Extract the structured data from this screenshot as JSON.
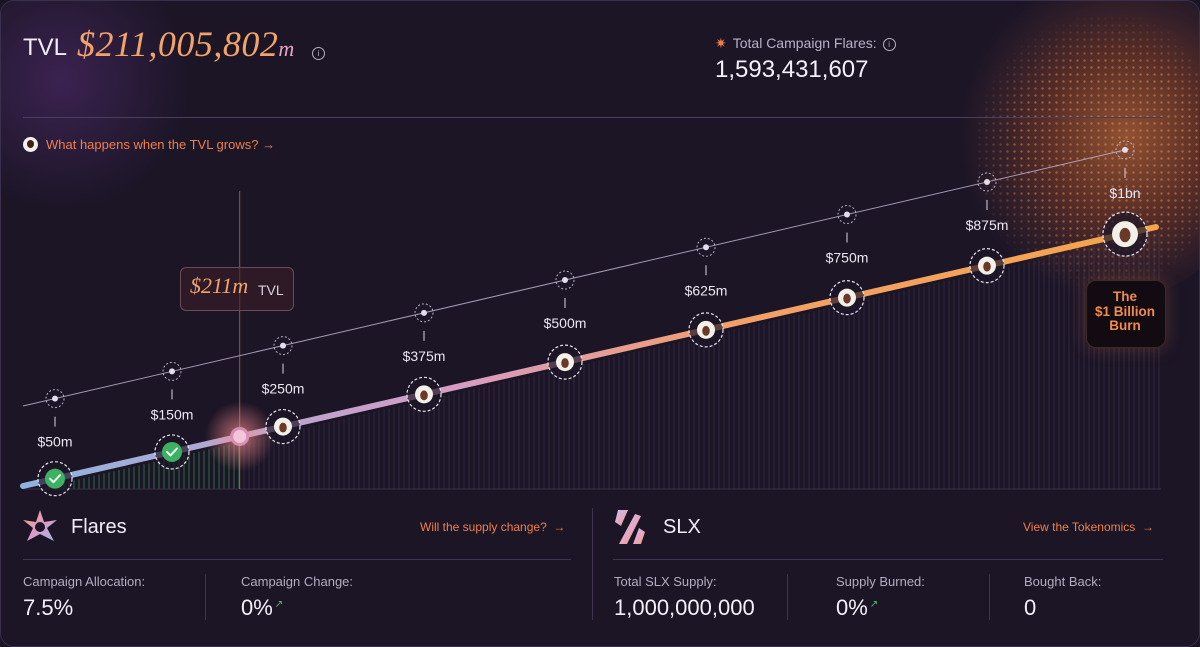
{
  "header": {
    "tvl_label": "TVL",
    "tvl_value": "$211,005,802",
    "tvl_unit": "m",
    "campaign_flares_label": "Total Campaign Flares:",
    "campaign_flares_value": "1,593,431,607",
    "tvl_question": "What happens when the TVL grows?",
    "tvl_question_arrow": "→"
  },
  "chart_data": {
    "type": "line",
    "milestones": [
      "$50m",
      "$150m",
      "$250m",
      "$375m",
      "$500m",
      "$625m",
      "$750m",
      "$875m",
      "$1bn"
    ],
    "milestone_values_m": [
      50,
      150,
      250,
      375,
      500,
      625,
      750,
      875,
      1000
    ],
    "reached": [
      true,
      true,
      false,
      false,
      false,
      false,
      false,
      false,
      false
    ],
    "current_tvl_m": 211,
    "current_label": "$211m",
    "current_suffix": "TVL",
    "final_burn_label": [
      "The",
      "$1 Billion",
      "Burn"
    ],
    "colors": {
      "start": "#8fb3df",
      "mid": "#d79bc4",
      "end": "#f4a44c",
      "reached": "#3db063"
    }
  },
  "flares": {
    "title": "Flares",
    "link": "Will the supply change?",
    "link_arrow": "→",
    "allocation_label": "Campaign Allocation:",
    "allocation_value": "7.5%",
    "change_label": "Campaign Change:",
    "change_value": "0%",
    "change_arrow": "↗"
  },
  "slx": {
    "title": "SLX",
    "link": "View the Tokenomics",
    "link_arrow": "→",
    "supply_label": "Total SLX Supply:",
    "supply_value": "1,000,000,000",
    "burned_label": "Supply Burned:",
    "burned_value": "0%",
    "burned_arrow": "↗",
    "bought_label": "Bought Back:",
    "bought_value": "0"
  }
}
